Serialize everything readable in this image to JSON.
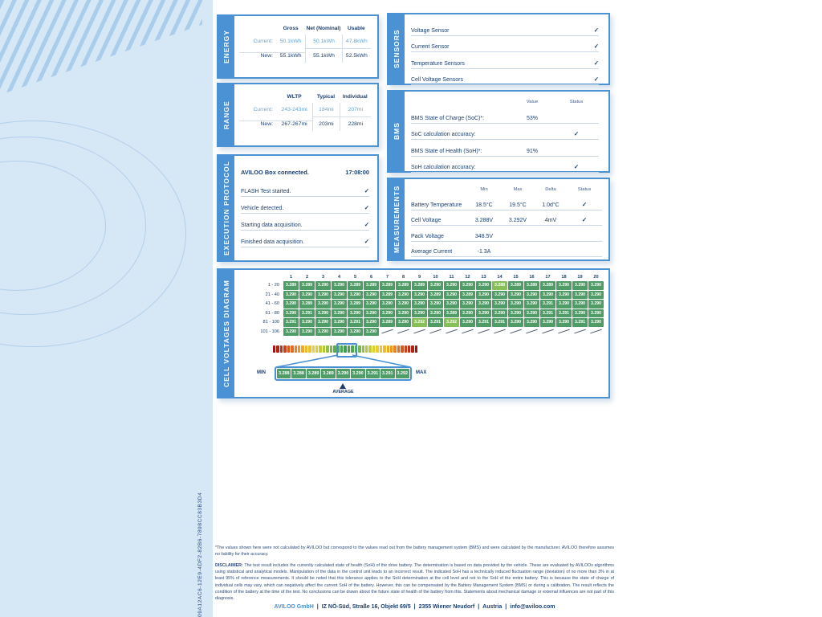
{
  "page": {
    "serial": "09A12AC6-12E9-4DF2-82B6-7898CC83B3D4"
  },
  "energy": {
    "tab": "ENERGY",
    "columns": [
      "Gross",
      "Net (Nominal)",
      "Usable"
    ],
    "rows": [
      {
        "label": "Current:",
        "accent": true,
        "values": [
          "50.1kWh",
          "50.1kWh",
          "47.8kWh"
        ]
      },
      {
        "label": "New:",
        "accent": false,
        "values": [
          "55.1kWh",
          "55.1kWh",
          "52.5kWh"
        ]
      }
    ]
  },
  "range": {
    "tab": "RANGE",
    "columns": [
      "WLTP",
      "Typical",
      "Individual"
    ],
    "rows": [
      {
        "label": "Current:",
        "accent": true,
        "values": [
          "243-243mi",
          "184mi",
          "207mi"
        ]
      },
      {
        "label": "New:",
        "accent": false,
        "values": [
          "267-267mi",
          "203mi",
          "228mi"
        ]
      }
    ]
  },
  "protocol": {
    "tab": "EXECUTION PROTOCOL",
    "header": {
      "title": "AVILOO Box connected.",
      "time": "17:08:00"
    },
    "items": [
      {
        "label": "FLASH Test started.",
        "check": true
      },
      {
        "label": "Vehicle detected.",
        "check": true
      },
      {
        "label": "Starting data acquisition.",
        "check": true
      },
      {
        "label": "Finished data acquisition.",
        "check": true
      }
    ]
  },
  "sensors": {
    "tab": "SENSORS",
    "items": [
      {
        "label": "Voltage Sensor",
        "check": true
      },
      {
        "label": "Current Sensor",
        "check": true
      },
      {
        "label": "Temperature Sensors",
        "check": true
      },
      {
        "label": "Cell Voltage Sensors",
        "check": true
      }
    ]
  },
  "bms": {
    "tab": "BMS",
    "columns": [
      "Value",
      "Status"
    ],
    "rows": [
      {
        "label": "BMS State of Charge (SoC)*:",
        "value": "53%",
        "check": false
      },
      {
        "label": "SoC calculation accuracy:",
        "value": "",
        "check": true
      },
      {
        "label": "BMS State of Health (SoH)*:",
        "value": "91%",
        "check": false
      },
      {
        "label": "SoH calculation accuracy:",
        "value": "",
        "check": true
      }
    ]
  },
  "measurements": {
    "tab": "MEASUREMENTS",
    "columns": [
      "Min",
      "Max",
      "Delta",
      "Status"
    ],
    "rows": [
      {
        "label": "Battery Temperature",
        "min": "18.5°C",
        "max": "19.5°C",
        "delta": "1.0d°C",
        "check": true
      },
      {
        "label": "Cell Voltage",
        "min": "3.288V",
        "max": "3.292V",
        "delta": "4mV",
        "check": true
      },
      {
        "label": "Pack Voltage",
        "min": "348.5V",
        "max": "",
        "delta": "",
        "check": false
      },
      {
        "label": "Average Current",
        "min": "-1.3A",
        "max": "",
        "delta": "",
        "check": false
      }
    ]
  },
  "cells": {
    "tab": "CELL VOLTAGES DIAGRAM",
    "col_headers": [
      "1",
      "2",
      "3",
      "4",
      "5",
      "6",
      "7",
      "8",
      "9",
      "10",
      "11",
      "12",
      "13",
      "14",
      "15",
      "16",
      "17",
      "18",
      "19",
      "20"
    ],
    "row_labels": [
      "1 - 20",
      "21 - 40",
      "41 - 60",
      "61 - 80",
      "81 - 100",
      "101 - 106"
    ],
    "values": [
      "3.289",
      "3.289",
      "3.290",
      "3.290",
      "3.289",
      "3.289",
      "3.289",
      "3.289",
      "3.289",
      "3.290",
      "3.290",
      "3.290",
      "3.290",
      "3.288",
      "3.289",
      "3.289",
      "3.289",
      "3.290",
      "3.290",
      "3.290",
      "3.290",
      "3.290",
      "3.290",
      "3.290",
      "3.290",
      "3.290",
      "3.289",
      "3.290",
      "3.290",
      "3.289",
      "3.290",
      "3.289",
      "3.290",
      "3.290",
      "3.290",
      "3.290",
      "3.290",
      "3.290",
      "3.290",
      "3.290",
      "3.290",
      "3.289",
      "3.290",
      "3.290",
      "3.289",
      "3.290",
      "3.290",
      "3.290",
      "3.290",
      "3.290",
      "3.290",
      "3.290",
      "3.290",
      "3.290",
      "3.290",
      "3.290",
      "3.291",
      "3.290",
      "3.290",
      "3.290",
      "3.290",
      "3.291",
      "3.290",
      "3.290",
      "3.290",
      "3.290",
      "3.290",
      "3.290",
      "3.290",
      "3.290",
      "3.289",
      "3.290",
      "3.290",
      "3.290",
      "3.290",
      "3.290",
      "3.291",
      "3.291",
      "3.290",
      "3.290",
      "3.291",
      "3.290",
      "3.290",
      "3.290",
      "3.291",
      "3.290",
      "3.289",
      "3.290",
      "3.292",
      "3.291",
      "3.292",
      "3.290",
      "3.291",
      "3.291",
      "3.290",
      "3.290",
      "3.290",
      "3.290",
      "3.291",
      "3.290",
      "3.290",
      "3.290",
      "3.290",
      "3.290",
      "3.290",
      "3.290"
    ],
    "total_slots": 120,
    "min_indices": [
      13
    ],
    "max_indices": [
      88,
      90
    ],
    "scale_bar": {
      "segments": 41
    },
    "mini_scale": {
      "min_label": "MIN",
      "max_label": "MAX",
      "values": [
        "3.288",
        "3.288",
        "3.289",
        "3.289",
        "3.290",
        "3.290",
        "3.291",
        "3.291",
        "3.292"
      ],
      "average_index": 4,
      "average_label": "AVERAGE"
    }
  },
  "footnote": "*The values shown here were not calculated by AVILOO but correspond to the values read out from the battery management system (BMS) and were calculated by the manufacturer. AVILOO therefore assumes no liability for their accuracy.",
  "disclaimer": {
    "label": "DISCLAIMER:",
    "text": "The test result includes the currently calculated state of health (SoH) of the drive battery. The determination is based on data provided by the vehicle. These are evaluated by AVILOOs algorithms using statistical and analytical models. Manipulation of the data in the control unit leads to an incorrect result. The indicated SoH has a technically induced fluctuation range (deviation) of no more than 3% in at least 95% of reference measurements. It should be noted that this tolerance applies to the SoH determination at the cell level and not to the SoH of the entire battery. This is because the state of charge of individual cells may vary, which can negatively affect the current SoH of the battery. However, this can be compensated by the Battery Management System (BMS) or during a calibration. The result reflects the condition of the battery at the time of the test. No conclusions can be drawn about the future state of health of the battery from this. Statements about mechanical damage or external influences are not part of this diagnosis."
  },
  "footer": {
    "company": "AVILOO GmbH",
    "parts": [
      "IZ NÖ-Süd, Straße 16, Objekt 69/5",
      "2355 Wiener Neudorf",
      "Austria",
      "info@aviloo.com"
    ]
  },
  "colors": {
    "panel_blue": "#4b92d4",
    "navy": "#1c3f70",
    "accent_blue": "#63a5da",
    "cell_green": "#4f9c66",
    "cell_highlight_green": "#86bf58"
  }
}
